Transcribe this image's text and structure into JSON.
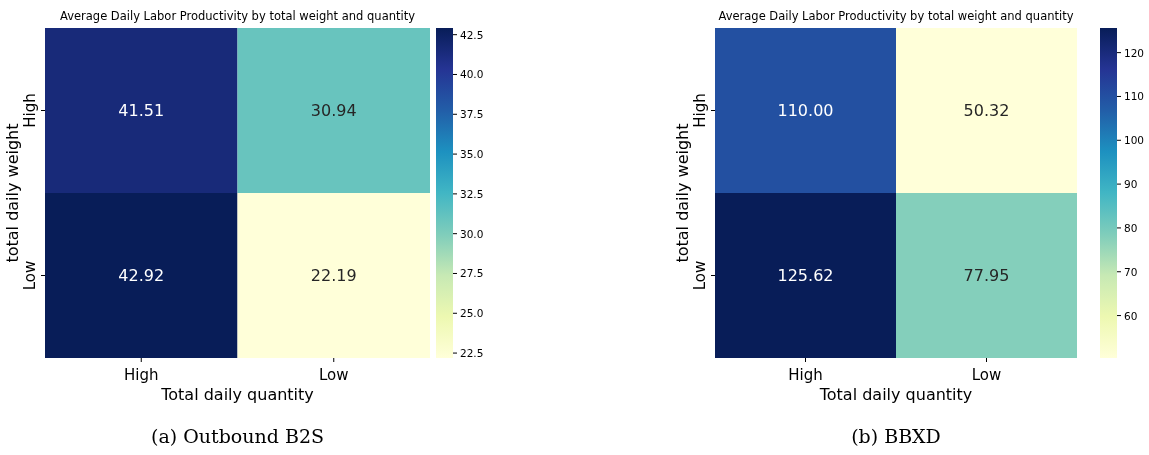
{
  "chart_data": [
    {
      "type": "heatmap",
      "title": "Average Daily Labor Productivity by total weight and quantity",
      "xlabel": "Total daily quantity",
      "ylabel": "total daily weight",
      "categories": [
        "High",
        "Low"
      ],
      "y_categories": [
        "High",
        "Low"
      ],
      "cells": [
        [
          41.51,
          30.94
        ],
        [
          42.92,
          22.19
        ]
      ],
      "cell_labels": [
        [
          "41.51",
          "30.94"
        ],
        [
          "42.92",
          "22.19"
        ]
      ],
      "clim": [
        22.19,
        42.92
      ],
      "cticks": [
        {
          "value": 22.5,
          "label": "22.5"
        },
        {
          "value": 25,
          "label": "25.0"
        },
        {
          "value": 27.5,
          "label": "27.5"
        },
        {
          "value": 30,
          "label": "30.0"
        },
        {
          "value": 32.5,
          "label": "32.5"
        },
        {
          "value": 35,
          "label": "35.0"
        },
        {
          "value": 37.5,
          "label": "37.5"
        },
        {
          "value": 40,
          "label": "40.0"
        },
        {
          "value": 42.5,
          "label": "42.5"
        }
      ],
      "annotations": [
        "(a) Outbound B2S"
      ]
    },
    {
      "type": "heatmap",
      "title": "Average Daily Labor Productivity by total weight and quantity",
      "xlabel": "Total daily quantity",
      "ylabel": "total daily weight",
      "categories": [
        "High",
        "Low"
      ],
      "y_categories": [
        "High",
        "Low"
      ],
      "cells": [
        [
          110.0,
          50.32
        ],
        [
          125.62,
          77.95
        ]
      ],
      "cell_labels": [
        [
          "110.00",
          "50.32"
        ],
        [
          "125.62",
          "77.95"
        ]
      ],
      "clim": [
        50.32,
        125.62
      ],
      "cticks": [
        60,
        70,
        80,
        90,
        100,
        110,
        120
      ],
      "annotations": [
        "(b) BBXD"
      ]
    }
  ]
}
